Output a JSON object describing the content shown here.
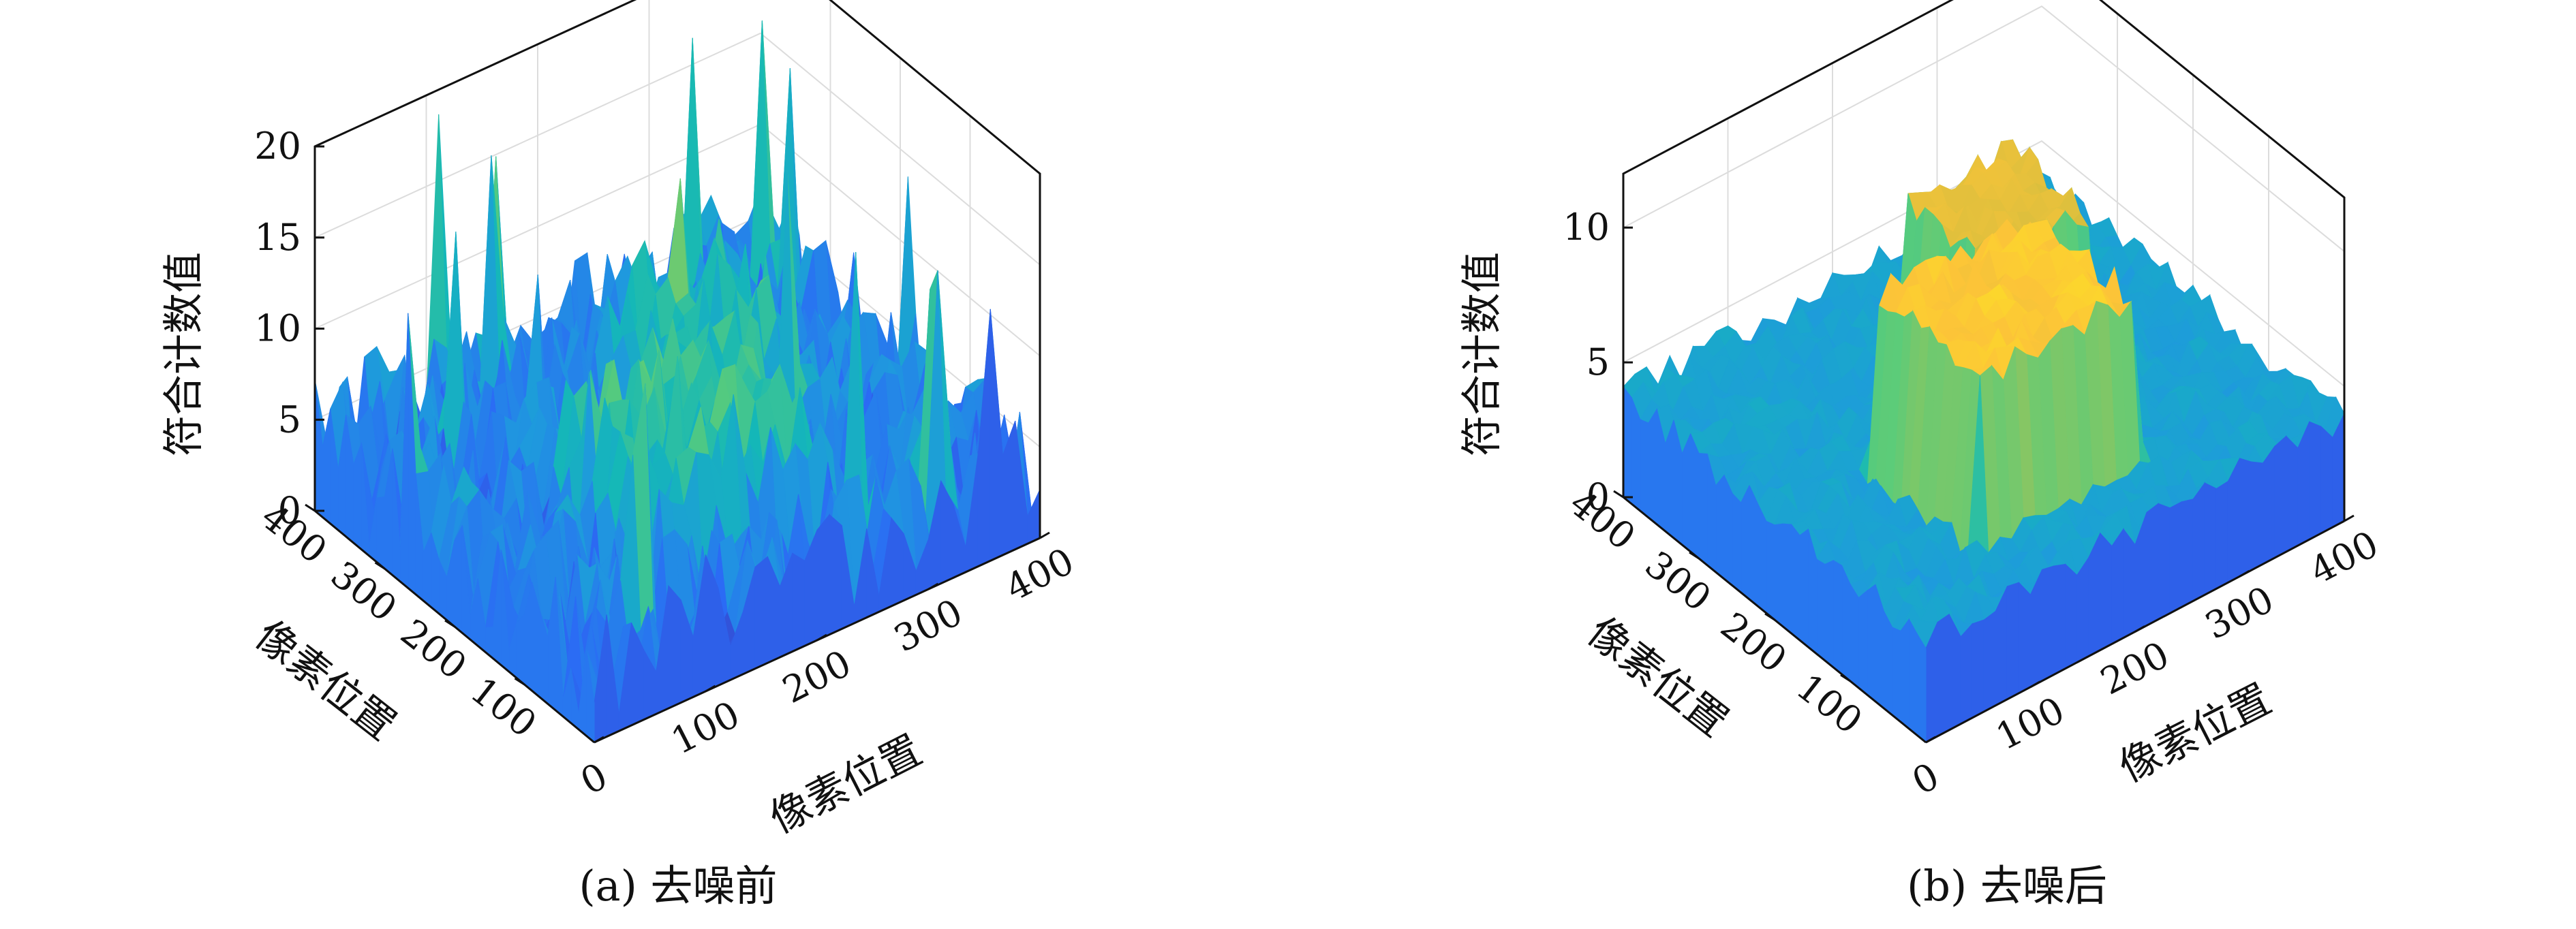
{
  "chart_data": [
    {
      "type": "surface",
      "caption": "(a) 去噪前",
      "zlabel": "符合计数值",
      "xlabel": "像素位置",
      "ylabel": "像素位置",
      "x_ticks": [
        "0",
        "100",
        "200",
        "300",
        "400"
      ],
      "y_ticks": [
        "400",
        "300",
        "200",
        "100"
      ],
      "z_ticks": [
        "0",
        "5",
        "10",
        "15",
        "20"
      ],
      "xlim": [
        0,
        400
      ],
      "ylim": [
        0,
        400
      ],
      "zlim": [
        0,
        20
      ],
      "grid": true,
      "colormap": "parula",
      "surface": {
        "background_level": 4,
        "background_noise": 3.5,
        "peak_regions": [
          {
            "x": [
              100,
              250
            ],
            "y": [
              60,
              200
            ],
            "level": 9
          },
          {
            "x": [
              200,
              300
            ],
            "y": [
              200,
              300
            ],
            "level": 8
          }
        ],
        "max_value": 19
      }
    },
    {
      "type": "surface",
      "caption": "(b) 去噪后",
      "zlabel": "符合计数值",
      "xlabel": "像素位置",
      "ylabel": "像素位置",
      "x_ticks": [
        "0",
        "100",
        "200",
        "300",
        "400"
      ],
      "y_ticks": [
        "400",
        "300",
        "200",
        "100"
      ],
      "z_ticks": [
        "0",
        "5",
        "10"
      ],
      "xlim": [
        0,
        400
      ],
      "ylim": [
        0,
        400
      ],
      "zlim": [
        0,
        12
      ],
      "grid": true,
      "colormap": "parula",
      "surface": {
        "background_level": 3.8,
        "background_noise": 0.6,
        "peak_regions": [
          {
            "x": [
              100,
              250
            ],
            "y": [
              60,
              200
            ],
            "level": 10
          },
          {
            "x": [
              200,
              300
            ],
            "y": [
              200,
              300
            ],
            "level": 9
          }
        ],
        "max_value": 11.5
      }
    }
  ]
}
